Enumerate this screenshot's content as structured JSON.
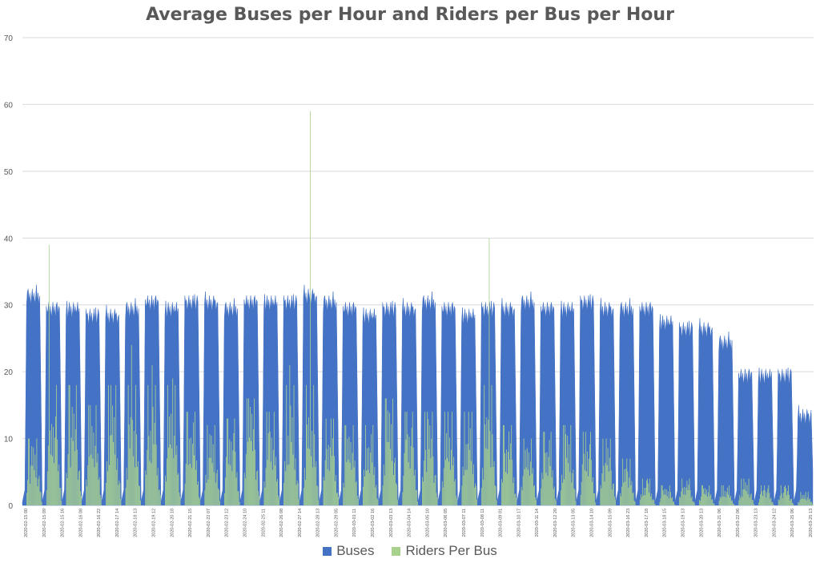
{
  "chart_data": {
    "type": "area",
    "title": "Average Buses per Hour and Riders per Bus per Hour",
    "xlabel": "",
    "ylabel": "",
    "ylim": [
      0,
      70
    ],
    "yticks": [
      0,
      10,
      20,
      30,
      40,
      50,
      60,
      70
    ],
    "grid": true,
    "legend_position": "bottom",
    "colors": {
      "buses": "#4472c4",
      "riders": "#a9d18e",
      "grid": "#d9d9d9",
      "text": "#595959"
    },
    "x_start": "2020-02-15",
    "x_end": "2020-03-25",
    "x_tick_labels_sample": [
      "2020-02-15 00",
      "2020-02-15 09",
      "2020-02-15 16",
      "2020-02-16 08",
      "2020-02-16 22",
      "2020-02-17 14",
      "2020-02-18 13",
      "2020-02-19 12",
      "2020-02-20 18",
      "2020-02-21 15",
      "2020-02-22 07",
      "2020-02-23 12",
      "2020-02-24 10",
      "2020-02-25 11",
      "2020-02-26 08",
      "2020-02-27 14",
      "2020-02-28 13",
      "2020-02-29 05",
      "2020-03-01 11",
      "2020-03-02 16",
      "2020-03-03 13",
      "2020-03-04 14",
      "2020-03-05 10",
      "2020-03-06 05",
      "2020-03-07 11",
      "2020-03-08 11",
      "2020-03-09 01",
      "2020-03-10 17",
      "2020-03-11 14",
      "2020-03-12 20",
      "2020-03-13 05",
      "2020-03-14 10",
      "2020-03-15 09",
      "2020-03-16 23",
      "2020-03-17 18",
      "2020-03-18 15",
      "2020-03-19 13",
      "2020-03-20 13",
      "2020-03-21 06",
      "2020-03-22 06",
      "2020-03-23 13",
      "2020-03-24 12",
      "2020-03-25 06",
      "2020-03-25 13"
    ],
    "daily_peaks": {
      "days": [
        "02-15",
        "02-16",
        "02-17",
        "02-18",
        "02-19",
        "02-20",
        "02-21",
        "02-22",
        "02-23",
        "02-24",
        "02-25",
        "02-26",
        "02-27",
        "02-28",
        "02-29",
        "03-01",
        "03-02",
        "03-03",
        "03-04",
        "03-05",
        "03-06",
        "03-07",
        "03-08",
        "03-09",
        "03-10",
        "03-11",
        "03-12",
        "03-13",
        "03-14",
        "03-15",
        "03-16",
        "03-17",
        "03-18",
        "03-19",
        "03-20",
        "03-21",
        "03-22",
        "03-23",
        "03-24",
        "03-25"
      ],
      "buses_peak": [
        33,
        31,
        31,
        30,
        30,
        31,
        32,
        31,
        32,
        32,
        31,
        32,
        32,
        32,
        33,
        32,
        31,
        30,
        31,
        31,
        32,
        31,
        30,
        31,
        31,
        32,
        31,
        31,
        32,
        31,
        31,
        31,
        29,
        28,
        28,
        26,
        21,
        21,
        21,
        15
      ],
      "riders_peak": [
        10,
        39,
        18,
        15,
        18,
        24,
        21,
        19,
        14,
        12,
        13,
        16,
        14,
        21,
        59,
        13,
        12,
        12,
        16,
        14,
        14,
        14,
        14,
        40,
        12,
        10,
        11,
        12,
        11,
        10,
        7,
        4,
        3,
        4,
        3,
        3,
        4,
        3,
        3,
        2
      ]
    },
    "series": [
      {
        "name": "Buses"
      },
      {
        "name": "Riders Per Bus"
      }
    ]
  }
}
